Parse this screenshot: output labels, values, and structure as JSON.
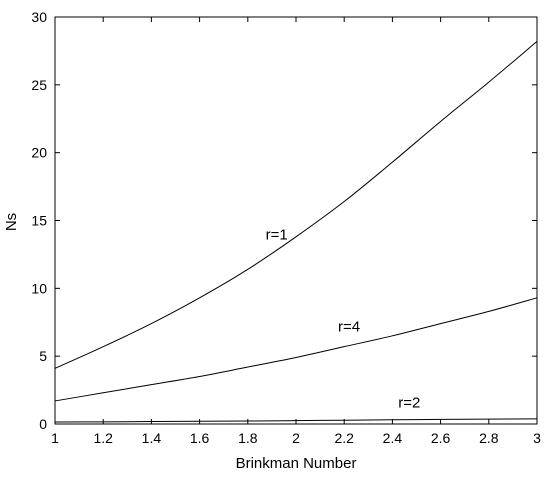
{
  "chart_data": {
    "type": "line",
    "title": "",
    "xlabel": "Brinkman Number",
    "ylabel": "Ns",
    "xlim": [
      1,
      3
    ],
    "ylim": [
      0,
      30
    ],
    "x_ticks": [
      1,
      1.2,
      1.4,
      1.6,
      1.8,
      2,
      2.2,
      2.4,
      2.6,
      2.8,
      3
    ],
    "x_tick_labels": [
      "1",
      "1.2",
      "1.4",
      "1.6",
      "1.8",
      "2",
      "2.2",
      "2.4",
      "2.6",
      "2.8",
      "3"
    ],
    "y_ticks": [
      0,
      5,
      10,
      15,
      20,
      25,
      30
    ],
    "y_tick_labels": [
      "0",
      "5",
      "10",
      "15",
      "20",
      "25",
      "30"
    ],
    "grid": false,
    "legend": "none",
    "line_color": "#000000",
    "x": [
      1,
      1.2,
      1.4,
      1.6,
      1.8,
      2,
      2.2,
      2.4,
      2.6,
      2.8,
      3
    ],
    "series": [
      {
        "annotation": "r=1",
        "annotation_at": [
          1.92,
          13.6
        ],
        "values": [
          4.1,
          5.7,
          7.4,
          9.3,
          11.4,
          13.8,
          16.4,
          19.3,
          22.3,
          25.2,
          28.2
        ]
      },
      {
        "annotation": "r=4",
        "annotation_at": [
          2.22,
          6.8
        ],
        "values": [
          1.7,
          2.3,
          2.9,
          3.5,
          4.2,
          4.9,
          5.7,
          6.5,
          7.4,
          8.3,
          9.3
        ]
      },
      {
        "annotation": "r=2",
        "annotation_at": [
          2.47,
          1.2
        ],
        "values": [
          0.15,
          0.16,
          0.18,
          0.2,
          0.22,
          0.25,
          0.28,
          0.31,
          0.34,
          0.36,
          0.38
        ]
      }
    ]
  }
}
